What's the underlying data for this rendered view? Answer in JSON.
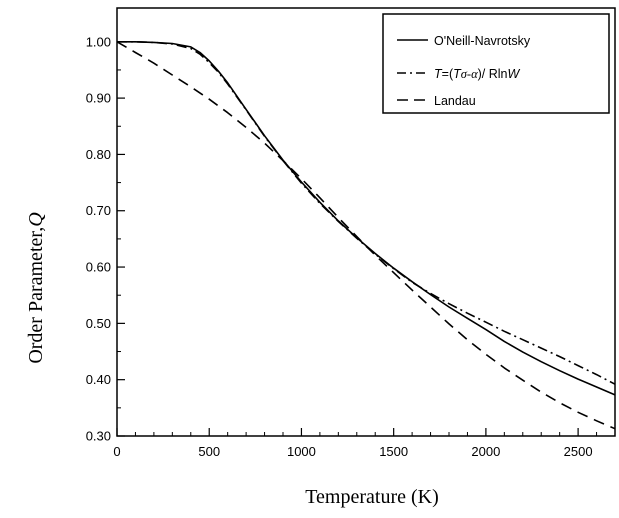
{
  "chart_data": {
    "type": "line",
    "xlabel": "Temperature (K)",
    "ylabel_text": "Order Parameter,",
    "ylabel_symbol": "Q",
    "xlim": [
      0,
      2700
    ],
    "ylim": [
      0.3,
      1.06
    ],
    "xticks": [
      0,
      500,
      1000,
      1500,
      2000,
      2500
    ],
    "xtick_labels": [
      "0",
      "500",
      "1000",
      "1500",
      "2000",
      "2500"
    ],
    "yticks": [
      0.3,
      0.4,
      0.5,
      0.6,
      0.7,
      0.8,
      0.9,
      1.0
    ],
    "ytick_labels": [
      "0.30",
      "0.40",
      "0.50",
      "0.60",
      "0.70",
      "0.80",
      "0.90",
      "1.00"
    ],
    "grid": false,
    "legend_position": "top-right",
    "series": [
      {
        "name": "O'Neill-Navrotsky",
        "style": "solid",
        "x": [
          0,
          100,
          200,
          300,
          400,
          450,
          500,
          550,
          600,
          700,
          800,
          900,
          1000,
          1100,
          1200,
          1300,
          1400,
          1500,
          1600,
          1700,
          1800,
          1900,
          2000,
          2100,
          2200,
          2300,
          2400,
          2500,
          2600,
          2700
        ],
        "y": [
          1.0,
          1.0,
          0.999,
          0.997,
          0.991,
          0.981,
          0.966,
          0.948,
          0.927,
          0.88,
          0.833,
          0.79,
          0.751,
          0.715,
          0.682,
          0.652,
          0.624,
          0.598,
          0.574,
          0.551,
          0.529,
          0.509,
          0.489,
          0.468,
          0.449,
          0.432,
          0.416,
          0.401,
          0.387,
          0.373
        ]
      },
      {
        "name": "T=(Tσ-α)/RlnW",
        "style": "dash-dot",
        "x": [
          0,
          100,
          200,
          300,
          400,
          450,
          500,
          550,
          600,
          700,
          800,
          900,
          1000,
          1100,
          1200,
          1300,
          1400,
          1500,
          1600,
          1700,
          1800,
          1900,
          2000,
          2100,
          2200,
          2300,
          2400,
          2500,
          2600,
          2700
        ],
        "y": [
          1.0,
          1.0,
          0.999,
          0.996,
          0.988,
          0.978,
          0.963,
          0.946,
          0.925,
          0.879,
          0.832,
          0.789,
          0.749,
          0.713,
          0.681,
          0.651,
          0.623,
          0.597,
          0.573,
          0.553,
          0.535,
          0.518,
          0.502,
          0.486,
          0.471,
          0.456,
          0.441,
          0.425,
          0.409,
          0.392
        ]
      },
      {
        "name": "Landau",
        "style": "dashed",
        "x": [
          0,
          100,
          200,
          300,
          400,
          500,
          600,
          700,
          800,
          900,
          1000,
          1100,
          1200,
          1300,
          1400,
          1500,
          1600,
          1700,
          1800,
          1900,
          2000,
          2100,
          2200,
          2300,
          2400,
          2500,
          2600,
          2700
        ],
        "y": [
          1.0,
          0.981,
          0.962,
          0.941,
          0.92,
          0.898,
          0.874,
          0.848,
          0.82,
          0.789,
          0.757,
          0.723,
          0.688,
          0.654,
          0.621,
          0.59,
          0.559,
          0.529,
          0.499,
          0.471,
          0.445,
          0.421,
          0.399,
          0.378,
          0.359,
          0.342,
          0.327,
          0.313
        ]
      }
    ],
    "legend": {
      "entries": [
        {
          "label": "O'Neill-Navrotsky",
          "style": "solid"
        },
        {
          "label_T": "T",
          "label_mid1": "=(",
          "label_T2": "T",
          "label_sigma_alpha": "σ-α",
          "label_mid2": ")/ Rln",
          "label_W": "W",
          "style": "dash-dot"
        },
        {
          "label": "Landau",
          "style": "dashed"
        }
      ]
    }
  }
}
